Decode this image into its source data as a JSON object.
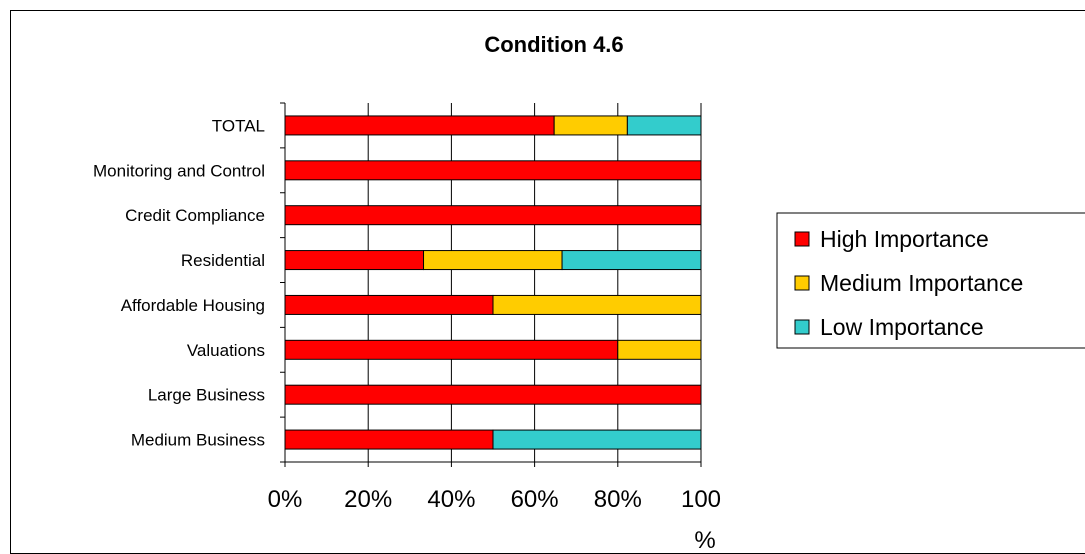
{
  "chart_data": {
    "type": "bar",
    "orientation": "horizontal",
    "stacking": "percent",
    "title": "Condition 4.6",
    "xlabel": "",
    "ylabel": "",
    "xlim": [
      0,
      100
    ],
    "x_ticks": [
      "0%",
      "20%",
      "40%",
      "60%",
      "80%",
      "100%"
    ],
    "grid": "vertical",
    "legend_position": "right",
    "categories": [
      "TOTAL",
      "Monitoring and Control",
      "Credit Compliance",
      "Residential",
      "Affordable Housing",
      "Valuations",
      "Large Business",
      "Medium Business"
    ],
    "series": [
      {
        "name": "High Importance",
        "color": "#ff0000",
        "values": [
          64.7,
          100,
          100,
          33.3,
          50,
          80,
          100,
          50
        ]
      },
      {
        "name": "Medium Importance",
        "color": "#ffcc00",
        "values": [
          17.6,
          0,
          0,
          33.3,
          50,
          20,
          0,
          0
        ]
      },
      {
        "name": "Low Importance",
        "color": "#33cccc",
        "values": [
          17.7,
          0,
          0,
          33.4,
          0,
          0,
          0,
          50
        ]
      }
    ]
  }
}
